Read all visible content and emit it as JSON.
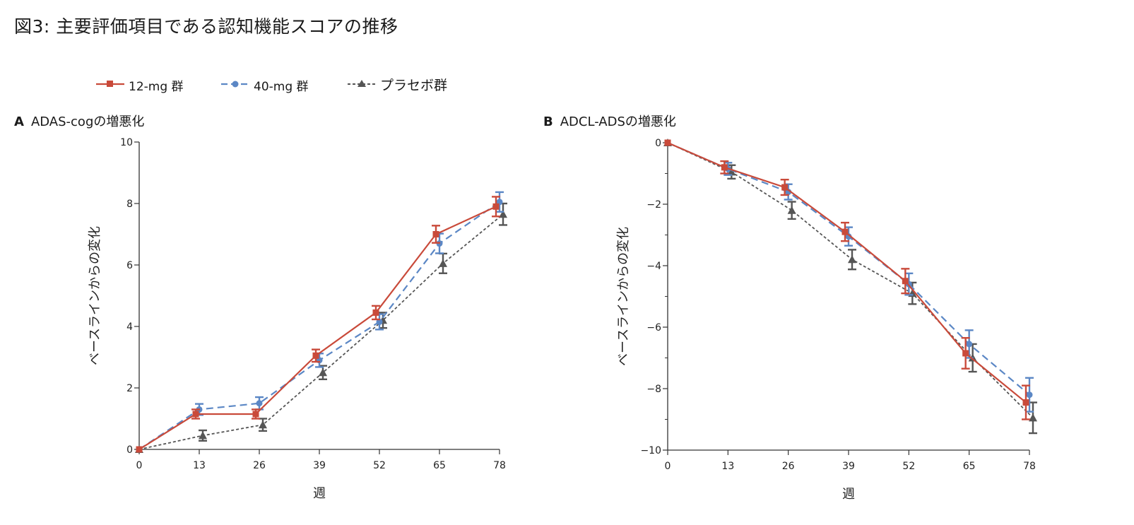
{
  "title": "図3: 主要評価項目である認知機能スコアの推移",
  "legend": [
    {
      "label": "12-mg 群",
      "color": "#c94a3a",
      "marker": "square",
      "dash": "solid"
    },
    {
      "label": "40-mg 群",
      "color": "#5b87c5",
      "marker": "circle",
      "dash": "dashed"
    },
    {
      "label": "プラセボ群",
      "color": "#555555",
      "marker": "triangle",
      "dash": "dotted"
    }
  ],
  "chart_data": [
    {
      "panel": "A",
      "type": "line",
      "title": "ADAS-cogの増悪化",
      "xlabel": "週",
      "ylabel": "ベースラインからの変化",
      "x": [
        0,
        13,
        26,
        39,
        52,
        65,
        78
      ],
      "xticks": [
        "0",
        "13",
        "26",
        "39",
        "52",
        "65",
        "78"
      ],
      "yticks": [
        "0",
        "2",
        "4",
        "6",
        "8",
        "10"
      ],
      "xlim": [
        0,
        78
      ],
      "ylim": [
        0,
        10
      ],
      "series": [
        {
          "name": "12-mg 群",
          "values": [
            0,
            1.15,
            1.15,
            3.05,
            4.45,
            7.0,
            7.9
          ],
          "err": [
            0,
            0.15,
            0.15,
            0.2,
            0.22,
            0.28,
            0.32
          ]
        },
        {
          "name": "40-mg 群",
          "values": [
            0,
            1.3,
            1.5,
            2.9,
            4.15,
            6.7,
            8.05
          ],
          "err": [
            0,
            0.18,
            0.2,
            0.22,
            0.25,
            0.32,
            0.32
          ]
        },
        {
          "name": "プラセボ群",
          "values": [
            0,
            0.45,
            0.8,
            2.5,
            4.2,
            6.05,
            7.65
          ],
          "err": [
            0,
            0.17,
            0.2,
            0.22,
            0.25,
            0.32,
            0.35
          ]
        }
      ]
    },
    {
      "panel": "B",
      "type": "line",
      "title": "ADCL-ADSの増悪化",
      "xlabel": "週",
      "ylabel": "ベースラインからの変化",
      "x": [
        0,
        13,
        26,
        39,
        52,
        65,
        78
      ],
      "xticks": [
        "0",
        "13",
        "26",
        "39",
        "52",
        "65",
        "78"
      ],
      "yticks": [
        "0",
        "−2",
        "−4",
        "−6",
        "−8",
        "−10"
      ],
      "xlim": [
        0,
        78
      ],
      "ylim": [
        -10,
        0
      ],
      "series": [
        {
          "name": "12-mg 群",
          "values": [
            0,
            -0.8,
            -1.45,
            -2.9,
            -4.5,
            -6.85,
            -8.45
          ],
          "err": [
            0,
            0.2,
            0.25,
            0.3,
            0.4,
            0.5,
            0.55
          ]
        },
        {
          "name": "40-mg 群",
          "values": [
            0,
            -0.85,
            -1.6,
            -3.05,
            -4.6,
            -6.55,
            -8.2
          ],
          "err": [
            0,
            0.2,
            0.25,
            0.3,
            0.35,
            0.45,
            0.55
          ]
        },
        {
          "name": "プラセボ群",
          "values": [
            0,
            -0.95,
            -2.2,
            -3.8,
            -4.9,
            -7.0,
            -8.95
          ],
          "err": [
            0,
            0.22,
            0.28,
            0.32,
            0.35,
            0.45,
            0.5
          ]
        }
      ]
    }
  ]
}
